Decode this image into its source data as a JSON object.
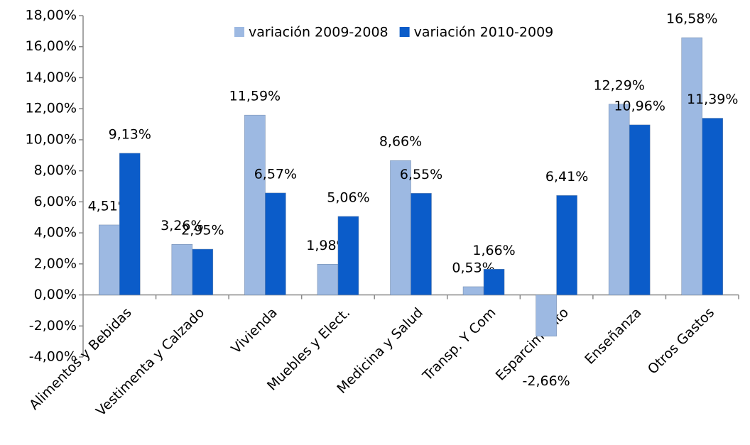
{
  "chart_data": {
    "type": "bar",
    "categories": [
      "Alimentos y Bebidas",
      "Vestimenta y Calzado",
      "Vivienda",
      "Muebles y Elect.",
      "Medicina y Salud",
      "Transp. Y Com",
      "Esparcimiento",
      "Enseñanza",
      "Otros Gastos"
    ],
    "series": [
      {
        "name": "variación 2009-2008",
        "color": "#9db9e2",
        "values": [
          4.51,
          3.26,
          11.59,
          1.98,
          8.66,
          0.53,
          -2.66,
          12.29,
          16.58
        ],
        "value_labels": [
          "4,51%",
          "3,26%",
          "11,59%",
          "1,98%",
          "8,66%",
          "0,53%",
          "-2,66%",
          "12,29%",
          "16,58%"
        ]
      },
      {
        "name": "variación 2010-2009",
        "color": "#0b5cc9",
        "values": [
          9.13,
          2.95,
          6.57,
          5.06,
          6.55,
          1.66,
          6.41,
          10.96,
          11.39
        ],
        "value_labels": [
          "9,13%",
          "2,95%",
          "6,57%",
          "5,06%",
          "6,55%",
          "1,66%",
          "6,41%",
          "10,96%",
          "11,39%"
        ]
      }
    ],
    "ylim": [
      -4,
      18
    ],
    "yticks": [
      {
        "value": -4,
        "label": "-4,00%"
      },
      {
        "value": -2,
        "label": "-2,00%"
      },
      {
        "value": 0,
        "label": "0,00%"
      },
      {
        "value": 2,
        "label": "2,00%"
      },
      {
        "value": 4,
        "label": "4,00%"
      },
      {
        "value": 6,
        "label": "6,00%"
      },
      {
        "value": 8,
        "label": "8,00%"
      },
      {
        "value": 10,
        "label": "10,00%"
      },
      {
        "value": 12,
        "label": "12,00%"
      },
      {
        "value": 14,
        "label": "14,00%"
      },
      {
        "value": 16,
        "label": "16,00%"
      },
      {
        "value": 18,
        "label": "18,00%"
      }
    ],
    "grid": false,
    "legend": "top"
  }
}
